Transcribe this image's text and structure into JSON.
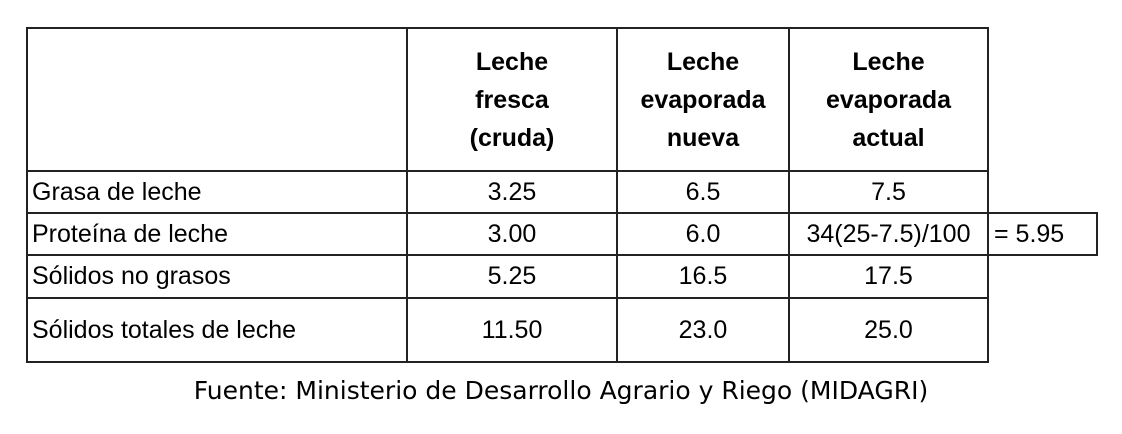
{
  "table": {
    "headers": [
      "",
      "Leche fresca (cruda)",
      "Leche evaporada nueva",
      "Leche evaporada actual"
    ],
    "rows": [
      {
        "label": "Grasa de leche",
        "values": [
          "3.25",
          "6.5",
          "7.5"
        ],
        "extra": ""
      },
      {
        "label": "Proteína de leche",
        "values": [
          "3.00",
          "6.0",
          "34(25-7.5)/100"
        ],
        "extra": "= 5.95"
      },
      {
        "label": "Sólidos no grasos",
        "values": [
          "5.25",
          "16.5",
          "17.5"
        ],
        "extra": ""
      },
      {
        "label": "Sólidos totales de leche",
        "values": [
          "11.50",
          "23.0",
          "25.0"
        ],
        "extra": ""
      }
    ]
  },
  "source": "Fuente: Ministerio de Desarrollo Agrario y Riego (MIDAGRI)"
}
